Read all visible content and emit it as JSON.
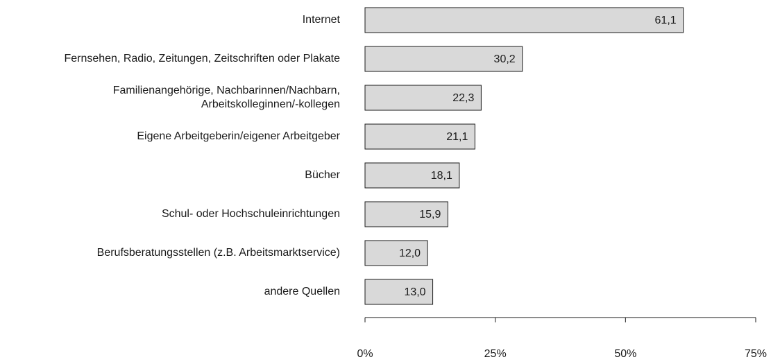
{
  "chart_data": {
    "type": "bar",
    "orientation": "horizontal",
    "categories": [
      "Internet",
      "Fernsehen, Radio, Zeitungen, Zeitschriften oder Plakate",
      "Familienangehörige, Nachbarinnen/Nachbarn,\nArbeitskolleginnen/-kollegen",
      "Eigene Arbeitgeberin/eigener Arbeitgeber",
      "Bücher",
      "Schul- oder Hochschuleinrichtungen",
      "Berufsberatungsstellen (z.B. Arbeitsmarktservice)",
      "andere Quellen"
    ],
    "values": [
      61.1,
      30.2,
      22.3,
      21.1,
      18.1,
      15.9,
      12.0,
      13.0
    ],
    "value_labels": [
      "61,1",
      "30,2",
      "22,3",
      "21,1",
      "18,1",
      "15,9",
      "12,0",
      "13,0"
    ],
    "color": "#d9d9d9",
    "xlim": [
      0,
      75
    ],
    "xticks": [
      {
        "value": 0,
        "label": "0%"
      },
      {
        "value": 25,
        "label": "25%"
      },
      {
        "value": 50,
        "label": "50%"
      },
      {
        "value": 75,
        "label": "75%"
      }
    ]
  }
}
